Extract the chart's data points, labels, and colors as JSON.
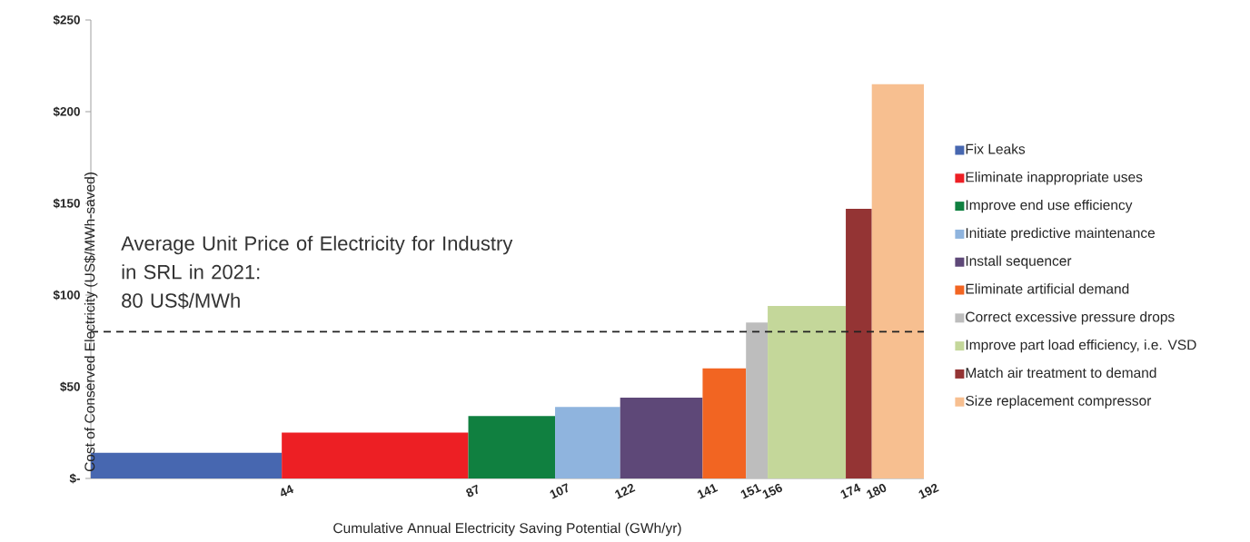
{
  "chart_data": {
    "type": "histogram",
    "xlabel": "Cumulative Annual Electricity Saving Potential (GWh/yr)",
    "ylabel": "Cost of Conserved Electricity (US$/MWh-saved)",
    "bins": [
      0,
      44,
      87,
      107,
      122,
      141,
      151,
      156,
      174,
      180,
      192
    ],
    "series": [
      {
        "name": "Fix Leaks",
        "color": "#4767b0",
        "values": [
          14,
          null,
          null,
          null,
          null,
          null,
          null,
          null,
          null,
          null
        ]
      },
      {
        "name": "Eliminate inappropriate uses",
        "color": "#ed1f24",
        "values": [
          null,
          25,
          null,
          null,
          null,
          null,
          null,
          null,
          null,
          null
        ]
      },
      {
        "name": "Improve end use efficiency",
        "color": "#108040",
        "values": [
          null,
          null,
          34,
          null,
          null,
          null,
          null,
          null,
          null,
          null
        ]
      },
      {
        "name": "Initiate predictive maintenance",
        "color": "#8fb4de",
        "values": [
          null,
          null,
          null,
          39,
          null,
          null,
          null,
          null,
          null,
          null
        ]
      },
      {
        "name": "Install sequencer",
        "color": "#5e4878",
        "values": [
          null,
          null,
          null,
          null,
          44,
          null,
          null,
          null,
          null,
          null
        ]
      },
      {
        "name": "Eliminate artificial demand",
        "color": "#f26522",
        "values": [
          null,
          null,
          null,
          null,
          null,
          60,
          null,
          null,
          null,
          null
        ]
      },
      {
        "name": "Correct excessive pressure drops",
        "color": "#bdbdbd",
        "values": [
          null,
          null,
          null,
          null,
          null,
          null,
          85,
          null,
          null,
          null
        ]
      },
      {
        "name": "Improve part load efficiency, i.e. VSD",
        "color": "#c4d79a",
        "values": [
          null,
          null,
          null,
          null,
          null,
          null,
          null,
          94,
          null,
          null
        ]
      },
      {
        "name": "Match air treatment to demand",
        "color": "#943434",
        "values": [
          null,
          null,
          null,
          null,
          null,
          null,
          null,
          null,
          147,
          null
        ]
      },
      {
        "name": "Size replacement compressor",
        "color": "#f7bf90",
        "values": [
          null,
          null,
          null,
          null,
          null,
          null,
          null,
          null,
          null,
          215
        ]
      }
    ],
    "xlim": [
      0,
      192
    ],
    "xticks": [
      44,
      87,
      107,
      122,
      141,
      151,
      156,
      174,
      180,
      192
    ],
    "ylim": [
      0,
      250
    ],
    "yticks": [
      {
        "value": 0,
        "label": "$-"
      },
      {
        "value": 50,
        "label": "$50"
      },
      {
        "value": 100,
        "label": "$100"
      },
      {
        "value": 150,
        "label": "$150"
      },
      {
        "value": 200,
        "label": "$200"
      },
      {
        "value": 250,
        "label": "$250"
      }
    ],
    "ref_lines": [
      {
        "axis": "y",
        "value": 80,
        "label": "Average Unit Price of Electricity for Industry in SRL in 2021:",
        "color": "#222222",
        "line_style": "dashed"
      }
    ],
    "annotations": [
      "80 US$/MWh"
    ],
    "legend": "right"
  }
}
